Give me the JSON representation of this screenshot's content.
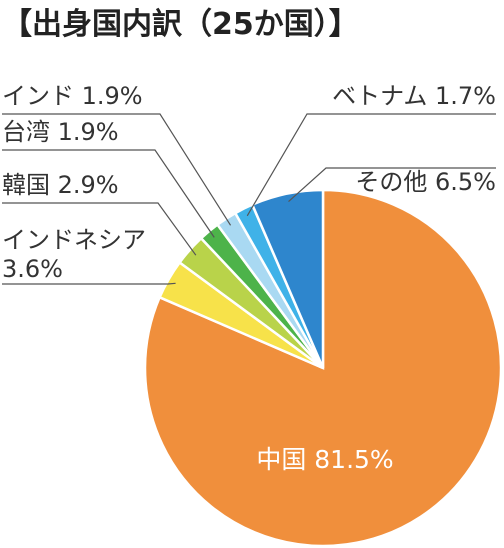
{
  "chart_data": {
    "type": "pie",
    "title": "【出身国内訳（25か国）】",
    "start": "top",
    "direction": "clockwise",
    "slices": [
      {
        "name": "中国",
        "value": 81.5,
        "label": "中国",
        "value_text": "81.5%",
        "color": "#F08F3C"
      },
      {
        "name": "インドネシア",
        "value": 3.6,
        "label": "インドネシア",
        "value_text": "3.6%",
        "color": "#F7E24A"
      },
      {
        "name": "韓国",
        "value": 2.9,
        "label": "韓国",
        "value_text": "2.9%",
        "color": "#B9D34A"
      },
      {
        "name": "台湾",
        "value": 1.9,
        "label": "台湾",
        "value_text": "1.9%",
        "color": "#4DB34A"
      },
      {
        "name": "インド",
        "value": 1.9,
        "label": "インド",
        "value_text": "1.9%",
        "color": "#A9D9F2"
      },
      {
        "name": "ベトナム",
        "value": 1.7,
        "label": "ベトナム",
        "value_text": "1.7%",
        "color": "#3FB2E8"
      },
      {
        "name": "その他",
        "value": 6.5,
        "label": "その他",
        "value_text": "6.5%",
        "color": "#2E86CD"
      }
    ]
  }
}
